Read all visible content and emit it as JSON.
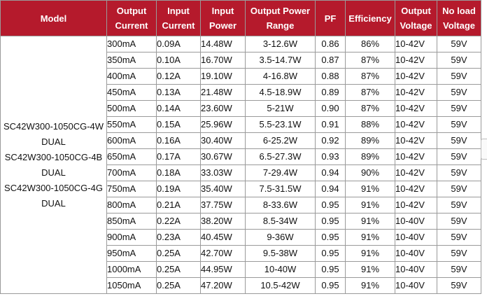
{
  "table": {
    "headers": [
      [
        "Model"
      ],
      [
        "Output",
        "Current"
      ],
      [
        "Input",
        "Current"
      ],
      [
        "Input",
        "Power"
      ],
      [
        "Output Power",
        "Range"
      ],
      [
        "PF"
      ],
      [
        "Efficiency"
      ],
      [
        "Output",
        "Voltage"
      ],
      [
        "No load",
        "Voltage"
      ]
    ],
    "model_lines": [
      "SC42W300-1050CG-4W",
      "DUAL",
      "SC42W300-1050CG-4B",
      "DUAL",
      "SC42W300-1050CG-4G",
      "DUAL"
    ],
    "rows": [
      [
        "300mA",
        "0.09A",
        "14.48W",
        "3-12.6W",
        "0.86",
        "86%",
        "10-42V",
        "59V"
      ],
      [
        "350mA",
        "0.10A",
        "16.70W",
        "3.5-14.7W",
        "0.87",
        "87%",
        "10-42V",
        "59V"
      ],
      [
        "400mA",
        "0.12A",
        "19.10W",
        "4-16.8W",
        "0.88",
        "87%",
        "10-42V",
        "59V"
      ],
      [
        "450mA",
        "0.13A",
        "21.48W",
        "4.5-18.9W",
        "0.89",
        "87%",
        "10-42V",
        "59V"
      ],
      [
        "500mA",
        "0.14A",
        "23.60W",
        "5-21W",
        "0.90",
        "87%",
        "10-42V",
        "59V"
      ],
      [
        "550mA",
        "0.15A",
        "25.96W",
        "5.5-23.1W",
        "0.91",
        "88%",
        "10-42V",
        "59V"
      ],
      [
        "600mA",
        "0.16A",
        "30.40W",
        "6-25.2W",
        "0.92",
        "89%",
        "10-42V",
        "59V"
      ],
      [
        "650mA",
        "0.17A",
        "30.67W",
        "6.5-27.3W",
        "0.93",
        "89%",
        "10-42V",
        "59V"
      ],
      [
        "700mA",
        "0.18A",
        "33.03W",
        "7-29.4W",
        "0.94",
        "90%",
        "10-42V",
        "59V"
      ],
      [
        "750mA",
        "0.19A",
        "35.40W",
        "7.5-31.5W",
        "0.94",
        "91%",
        "10-42V",
        "59V"
      ],
      [
        "800mA",
        "0.21A",
        "37.75W",
        "8-33.6W",
        "0.95",
        "91%",
        "10-42V",
        "59V"
      ],
      [
        "850mA",
        "0.22A",
        "38.20W",
        "8.5-34W",
        "0.95",
        "91%",
        "10-40V",
        "59V"
      ],
      [
        "900mA",
        "0.23A",
        "40.45W",
        "9-36W",
        "0.95",
        "91%",
        "10-40V",
        "59V"
      ],
      [
        "950mA",
        "0.25A",
        "42.70W",
        "9.5-38W",
        "0.95",
        "91%",
        "10-40V",
        "59V"
      ],
      [
        "1000mA",
        "0.25A",
        "44.95W",
        "10-40W",
        "0.95",
        "91%",
        "10-40V",
        "59V"
      ],
      [
        "1050mA",
        "0.25A",
        "47.20W",
        "10.5-42W",
        "0.95",
        "91%",
        "10-40V",
        "59V"
      ]
    ]
  },
  "colors": {
    "header_bg": "#b51a2c",
    "header_text": "#ffffff",
    "border": "#9a9a9a"
  },
  "side_tab_icon": "side-panel-tab"
}
